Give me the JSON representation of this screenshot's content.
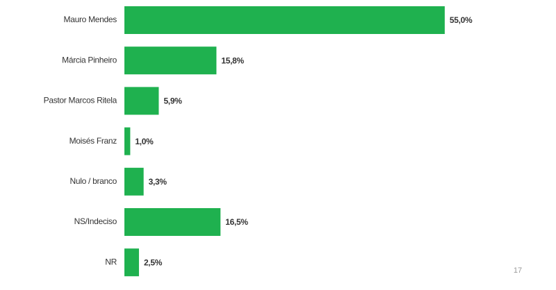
{
  "chart_data": {
    "type": "bar",
    "orientation": "horizontal",
    "categories": [
      "Mauro Mendes",
      "Márcia Pinheiro",
      "Pastor Marcos Ritela",
      "Moisés Franz",
      "Nulo / branco",
      "NS/Indeciso",
      "NR"
    ],
    "values": [
      55.0,
      15.8,
      5.9,
      1.0,
      3.3,
      16.5,
      2.5
    ],
    "value_labels": [
      "55,0%",
      "15,8%",
      "5,9%",
      "1,0%",
      "3,3%",
      "16,5%",
      "2,5%"
    ],
    "color": "#1fb14f"
  },
  "page_number": "17"
}
